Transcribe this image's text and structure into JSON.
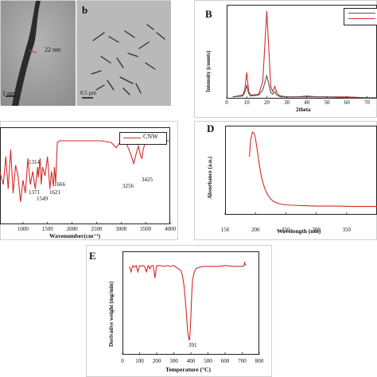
{
  "panels": {
    "a": {
      "letter": "",
      "scale_bar_label": "22 nm",
      "scale_bottom_label": "1 nm"
    },
    "b": {
      "letter": "b",
      "scale_label": "0.5 µm"
    },
    "B": {
      "letter": "B",
      "xlabel": "2theta",
      "ylabel": "Intensity (counts)"
    },
    "C": {
      "letter": "",
      "xlabel": "Wavenumber(cm⁻¹)",
      "legend": "CNW"
    },
    "D": {
      "letter": "D",
      "xlabel": "Wavelength (nm)",
      "ylabel": "Absorbance (a.u.)"
    },
    "E": {
      "letter": "E",
      "xlabel": "Temperature (°C)",
      "ylabel": "Derivative weight (mg/min)",
      "peak_label": "391"
    }
  },
  "colors": {
    "red": "#d62a2a",
    "dark": "#555555",
    "axis": "#222222"
  },
  "chart_data": [
    {
      "panel": "B",
      "type": "line",
      "title": "",
      "xlabel": "2theta",
      "ylabel": "Intensity (counts)",
      "xlim": [
        0,
        75
      ],
      "xticks": [
        0,
        10,
        20,
        30,
        40,
        50,
        60,
        70
      ],
      "series": [
        {
          "color": "#d62a2a",
          "x": [
            3,
            8,
            9,
            10,
            11,
            12,
            16,
            18,
            19,
            20,
            21,
            22,
            23,
            24,
            25,
            26,
            27,
            30,
            35,
            40,
            45,
            50,
            60,
            70,
            75
          ],
          "y": [
            2,
            4,
            10,
            30,
            8,
            4,
            5,
            20,
            60,
            100,
            58,
            14,
            8,
            14,
            7,
            4,
            3,
            2,
            2,
            3,
            2,
            2,
            2,
            1,
            1
          ]
        },
        {
          "color": "#555555",
          "x": [
            3,
            8,
            9,
            10,
            11,
            12,
            16,
            18,
            19,
            20,
            21,
            22,
            23,
            24,
            25,
            26,
            27,
            30,
            35,
            40,
            45,
            50,
            60,
            70,
            75
          ],
          "y": [
            2,
            3,
            7,
            15,
            6,
            3,
            4,
            10,
            18,
            26,
            17,
            7,
            5,
            8,
            4,
            3,
            2,
            2,
            2,
            2,
            2,
            2,
            1,
            1,
            1
          ]
        }
      ]
    },
    {
      "panel": "C",
      "type": "line",
      "title": "",
      "xlabel": "Wavenumber(cm⁻¹)",
      "ylabel": "",
      "xlim": [
        500,
        4000
      ],
      "xticks": [
        1000,
        1500,
        2000,
        2500,
        3000,
        3500,
        4000
      ],
      "series": [
        {
          "name": "CNW",
          "color": "#d62a2a",
          "x": [
            500,
            600,
            650,
            700,
            750,
            800,
            850,
            900,
            950,
            1000,
            1050,
            1100,
            1150,
            1200,
            1250,
            1300,
            1314,
            1350,
            1371,
            1400,
            1450,
            1500,
            1549,
            1580,
            1621,
            1640,
            1666,
            1700,
            1750,
            1800,
            2000,
            2200,
            2400,
            2600,
            2800,
            2850,
            2900,
            2950,
            3000,
            3100,
            3200,
            3256,
            3300,
            3350,
            3400,
            3425,
            3450,
            3500,
            3600,
            3800,
            4000
          ],
          "y": [
            60,
            40,
            72,
            35,
            80,
            30,
            62,
            50,
            20,
            45,
            30,
            70,
            40,
            55,
            35,
            60,
            48,
            70,
            40,
            60,
            50,
            72,
            35,
            55,
            38,
            60,
            42,
            88,
            90,
            90,
            90,
            90,
            90,
            90,
            88,
            85,
            82,
            86,
            90,
            88,
            74,
            64,
            74,
            84,
            72,
            70,
            80,
            90,
            90,
            90,
            90
          ]
        }
      ],
      "annotations": [
        "1314",
        "1371",
        "1549",
        "1621",
        "1666",
        "3256",
        "3425"
      ]
    },
    {
      "panel": "D",
      "type": "line",
      "title": "",
      "xlabel": "Wavelength (nm)",
      "ylabel": "Absorbance (a.u.)",
      "xlim": [
        150,
        400
      ],
      "xticks": [
        150,
        200,
        250,
        300,
        350
      ],
      "series": [
        {
          "color": "#d62a2a",
          "x": [
            190,
            192,
            195,
            198,
            200,
            203,
            206,
            210,
            215,
            220,
            225,
            230,
            240,
            250,
            260,
            280,
            300,
            330,
            360,
            400
          ],
          "y": [
            70,
            90,
            100,
            98,
            92,
            78,
            62,
            45,
            32,
            24,
            19,
            16,
            13,
            12,
            11.5,
            11,
            10.5,
            10.5,
            10,
            10
          ]
        }
      ]
    },
    {
      "panel": "E",
      "type": "line",
      "title": "",
      "xlabel": "Temperature (°C)",
      "ylabel": "Derivative weight (mg/min)",
      "xlim": [
        0,
        800
      ],
      "xticks": [
        0,
        100,
        200,
        300,
        400,
        500,
        600,
        700,
        800
      ],
      "series": [
        {
          "color": "#d62a2a",
          "x": [
            40,
            50,
            60,
            70,
            80,
            90,
            100,
            110,
            120,
            130,
            140,
            150,
            160,
            170,
            180,
            190,
            200,
            220,
            240,
            260,
            280,
            300,
            320,
            340,
            350,
            360,
            370,
            380,
            385,
            391,
            395,
            400,
            405,
            410,
            420,
            430,
            450,
            480,
            520,
            560,
            600,
            650,
            700,
            710,
            715,
            720
          ],
          "y": [
            95,
            88,
            96,
            94,
            96,
            88,
            96,
            95,
            96,
            95,
            88,
            96,
            92,
            96,
            96,
            80,
            96,
            96,
            95,
            96,
            95,
            96,
            93,
            90,
            84,
            70,
            45,
            15,
            5,
            0,
            8,
            30,
            60,
            78,
            88,
            92,
            94,
            95,
            95,
            95,
            96,
            95,
            95,
            96,
            100,
            96
          ]
        }
      ],
      "annotations": [
        "391"
      ]
    }
  ]
}
